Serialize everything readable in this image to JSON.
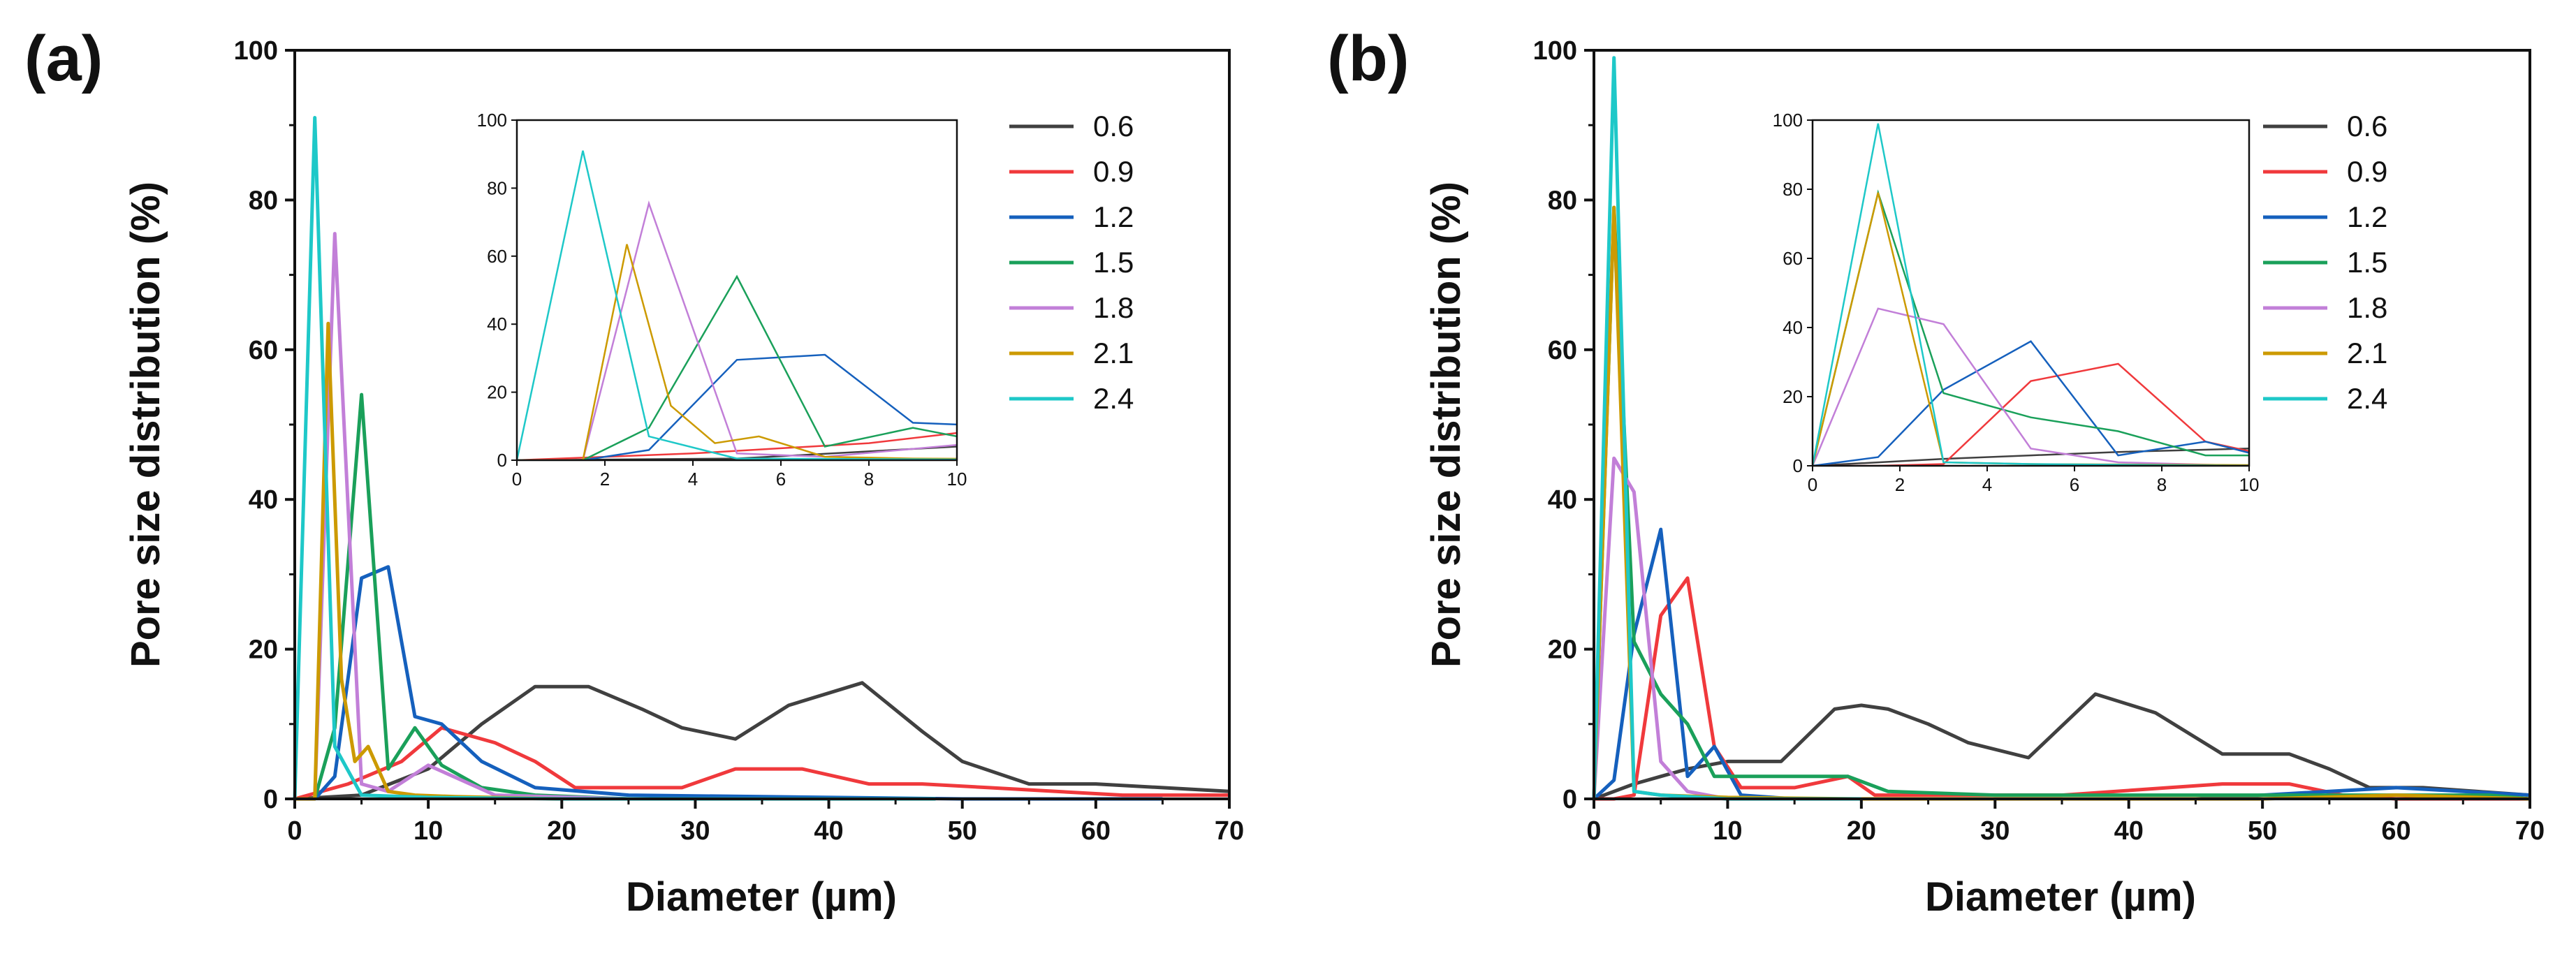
{
  "figure": {
    "panels": [
      "(a)",
      "(b)"
    ]
  },
  "colors": {
    "0.6": "#404040",
    "0.9": "#f0393c",
    "1.2": "#1560bd",
    "1.5": "#1aa05a",
    "1.8": "#c27fd8",
    "2.1": "#cc9a00",
    "2.4": "#1ec8c8"
  },
  "chart_data": [
    {
      "type": "line",
      "panel": "(a)",
      "xlabel": "Diameter (µm)",
      "ylabel": "Pore size distribution (%)",
      "xlim": [
        0,
        70
      ],
      "ylim": [
        0,
        100
      ],
      "xticks": [
        "0",
        "10",
        "20",
        "30",
        "40",
        "50",
        "60",
        "70"
      ],
      "yticks": [
        "0",
        "20",
        "40",
        "60",
        "80",
        "100"
      ],
      "legend": [
        "0.6",
        "0.9",
        "1.2",
        "1.5",
        "1.8",
        "2.1",
        "2.4"
      ],
      "series": [
        {
          "name": "0.6",
          "x": [
            0,
            5,
            10,
            14,
            18,
            22,
            26,
            29,
            33,
            37,
            42.5,
            47,
            50,
            55,
            60,
            65,
            70
          ],
          "y": [
            0,
            0.5,
            4,
            10,
            15,
            15,
            12,
            9.5,
            8,
            12.5,
            15.5,
            9,
            5,
            2,
            2,
            1.5,
            1
          ]
        },
        {
          "name": "0.9",
          "x": [
            0,
            4,
            8,
            11,
            15,
            18,
            21,
            25,
            29,
            33,
            38,
            43,
            47,
            52,
            57,
            62,
            70
          ],
          "y": [
            0,
            2,
            5,
            9.5,
            7.5,
            5,
            1.5,
            1.5,
            1.5,
            4,
            4,
            2,
            2,
            1.5,
            1,
            0.5,
            0.5
          ]
        },
        {
          "name": "1.2",
          "x": [
            0,
            1.5,
            3,
            5,
            7,
            9,
            11,
            14,
            18,
            25,
            35,
            50,
            65
          ],
          "y": [
            0,
            0,
            3,
            29.5,
            31,
            11,
            10,
            5,
            1.5,
            0.5,
            0.3,
            0,
            0
          ]
        },
        {
          "name": "1.5",
          "x": [
            0,
            1.5,
            3,
            5,
            7,
            9,
            11,
            14,
            18,
            25,
            40
          ],
          "y": [
            0,
            0,
            9.5,
            54,
            4,
            9.5,
            4.5,
            1.5,
            0.5,
            0,
            0
          ]
        },
        {
          "name": "1.8",
          "x": [
            0,
            1.5,
            3,
            5,
            7,
            10,
            15,
            25
          ],
          "y": [
            0,
            0,
            75.5,
            2,
            1,
            4.5,
            0.5,
            0
          ]
        },
        {
          "name": "2.1",
          "x": [
            0,
            1.5,
            2.5,
            3.5,
            4.5,
            5.5,
            7,
            9,
            12,
            20
          ],
          "y": [
            0,
            0,
            63.5,
            16,
            5,
            7,
            1,
            0.5,
            0.3,
            0
          ]
        },
        {
          "name": "2.4",
          "x": [
            0,
            1.5,
            3,
            5,
            10,
            20,
            48
          ],
          "y": [
            0,
            91,
            7,
            0.5,
            0.2,
            0,
            0
          ]
        }
      ],
      "inset": {
        "xlim": [
          0,
          10
        ],
        "ylim": [
          0,
          100
        ],
        "xticks": [
          "0",
          "2",
          "4",
          "6",
          "8",
          "10"
        ],
        "yticks": [
          "0",
          "20",
          "40",
          "60",
          "80",
          "100"
        ]
      }
    },
    {
      "type": "line",
      "panel": "(b)",
      "xlabel": "Diameter (µm)",
      "ylabel": "Pore size distribution (%)",
      "xlim": [
        0,
        70
      ],
      "ylim": [
        0,
        100
      ],
      "xticks": [
        "0",
        "10",
        "20",
        "30",
        "40",
        "50",
        "60",
        "70"
      ],
      "yticks": [
        "0",
        "20",
        "40",
        "60",
        "80",
        "100"
      ],
      "legend": [
        "0.6",
        "0.9",
        "1.2",
        "1.5",
        "1.8",
        "2.1",
        "2.4"
      ],
      "series": [
        {
          "name": "0.6",
          "x": [
            0,
            3,
            5,
            7,
            10,
            14,
            18,
            20,
            22,
            25,
            28,
            32.5,
            37.5,
            42,
            47,
            50,
            52,
            55,
            58,
            62,
            66,
            70
          ],
          "y": [
            0,
            2,
            3,
            4,
            5,
            5,
            12,
            12.5,
            12,
            10,
            7.5,
            5.5,
            14,
            11.5,
            6,
            6,
            6,
            4,
            1.5,
            1.5,
            1,
            0.5
          ]
        },
        {
          "name": "0.9",
          "x": [
            0,
            1.5,
            3,
            5,
            7,
            9,
            11,
            15,
            19,
            21,
            25,
            35,
            43,
            47,
            52,
            56,
            60,
            70
          ],
          "y": [
            0,
            0,
            0.5,
            24.5,
            29.5,
            7,
            1.5,
            1.5,
            3,
            0.5,
            0.5,
            0.5,
            1.5,
            2,
            2,
            0.5,
            0,
            0
          ]
        },
        {
          "name": "1.2",
          "x": [
            0,
            1.5,
            3,
            5,
            7,
            9,
            11,
            15,
            20,
            30,
            45,
            60,
            70
          ],
          "y": [
            0,
            2.5,
            22,
            36,
            3,
            7,
            0.5,
            0,
            0,
            0,
            0,
            1.5,
            0.5
          ]
        },
        {
          "name": "1.5",
          "x": [
            0,
            1.5,
            3,
            5,
            7,
            9,
            12,
            15,
            19,
            22,
            30,
            40,
            50,
            60,
            67,
            70
          ],
          "y": [
            0,
            79,
            21,
            14,
            10,
            3,
            3,
            3,
            3,
            1,
            0.5,
            0.5,
            0.5,
            0.5,
            0.5,
            0
          ]
        },
        {
          "name": "1.8",
          "x": [
            0,
            1.5,
            3,
            5,
            7,
            10,
            20
          ],
          "y": [
            0,
            45.5,
            41,
            5,
            1,
            0,
            0
          ]
        },
        {
          "name": "2.1",
          "x": [
            0,
            1.5,
            3,
            5,
            10,
            20,
            30,
            40,
            50,
            60,
            70
          ],
          "y": [
            0,
            79,
            1,
            0.5,
            0.2,
            0,
            0,
            0,
            0,
            0.5,
            0
          ]
        },
        {
          "name": "2.4",
          "x": [
            0,
            1.5,
            3,
            5,
            10,
            20
          ],
          "y": [
            0,
            99,
            1,
            0.5,
            0,
            0
          ]
        }
      ],
      "inset": {
        "xlim": [
          0,
          10
        ],
        "ylim": [
          0,
          100
        ],
        "xticks": [
          "0",
          "2",
          "4",
          "6",
          "8",
          "10"
        ],
        "yticks": [
          "0",
          "20",
          "40",
          "60",
          "80",
          "100"
        ]
      }
    }
  ]
}
